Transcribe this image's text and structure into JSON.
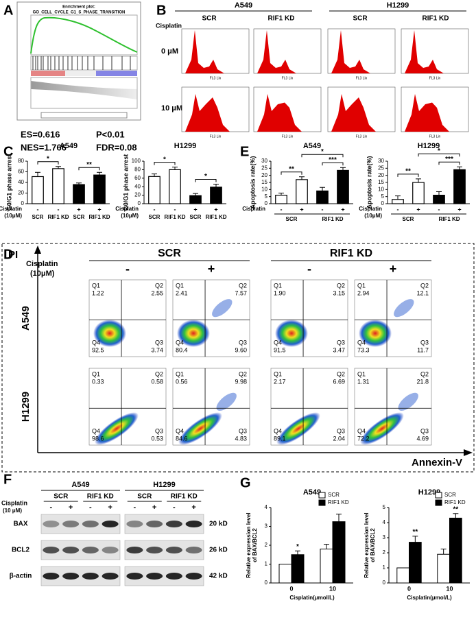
{
  "panels": {
    "labels": [
      "A",
      "B",
      "C",
      "D",
      "E",
      "F",
      "G"
    ]
  },
  "gsea": {
    "title": "Enrichment plot:",
    "subtitle": "GO_CELL_CYCLE_G1_S_PHASE_TRANSITION",
    "stats": [
      "ES=0.616",
      "P<0.01",
      "NES=1.766",
      "FDR=0.08"
    ]
  },
  "cell_cycle": {
    "cell_lines": [
      "A549",
      "H1299"
    ],
    "groups": [
      "SCR",
      "RIF1 KD",
      "SCR",
      "RIF1 KD"
    ],
    "treatment": "Cisplatin",
    "doses": [
      "0 μM",
      "10 μM"
    ],
    "x_label": "FL3 Lin"
  },
  "chart_data": [
    {
      "type": "bar",
      "title": "A549",
      "y_label": "G0/G1 phase arrest",
      "treatment_label": [
        "Cisplatin",
        "(10μM)"
      ],
      "treatment": [
        "-",
        "-",
        "+",
        "+"
      ],
      "categories": [
        "SCR",
        "RIF1 KD",
        "SCR",
        "RIF1 KD"
      ],
      "values": [
        51,
        66,
        36,
        54
      ],
      "errors": [
        8,
        4,
        3,
        5
      ],
      "colors": [
        "#ffffff",
        "#ffffff",
        "#000000",
        "#000000"
      ],
      "ylim": [
        0,
        80
      ],
      "yticks": [
        0,
        20,
        40,
        60,
        80
      ],
      "significance": [
        "*",
        "**"
      ]
    },
    {
      "type": "bar",
      "title": "H1299",
      "y_label": "G0/G1 phase arrest",
      "treatment_label": [
        "Cisplatin",
        "(10μM)"
      ],
      "treatment": [
        "-",
        "-",
        "+",
        "+"
      ],
      "categories": [
        "SCR",
        "RIF1 KD",
        "SCR",
        "RIF1 KD"
      ],
      "values": [
        64,
        80,
        19,
        39
      ],
      "errors": [
        6,
        6,
        5,
        7
      ],
      "colors": [
        "#ffffff",
        "#ffffff",
        "#000000",
        "#000000"
      ],
      "ylim": [
        0,
        100
      ],
      "yticks": [
        0,
        20,
        40,
        60,
        80,
        100
      ],
      "significance": [
        "*",
        "*"
      ]
    },
    {
      "type": "bar",
      "title": "A549",
      "y_label": "Apoptosis rate(%)",
      "treatment_label": [
        "Cisplatin"
      ],
      "categories": [
        "-",
        "+",
        "-",
        "+"
      ],
      "groups": [
        "SCR",
        "RIF1 KD"
      ],
      "values": [
        6,
        17,
        9,
        23.5
      ],
      "errors": [
        1.5,
        2,
        2.5,
        2
      ],
      "colors": [
        "#ffffff",
        "#ffffff",
        "#000000",
        "#000000"
      ],
      "ylim": [
        0,
        30
      ],
      "yticks": [
        0,
        5,
        10,
        15,
        20,
        25,
        30
      ],
      "significance": [
        "**",
        "***",
        "*"
      ]
    },
    {
      "type": "bar",
      "title": "H1299",
      "y_label": "Apoptosis rate(%)",
      "treatment_label": [
        "Cisplatin",
        "(10μM)"
      ],
      "categories": [
        "-",
        "+",
        "-",
        "+"
      ],
      "groups": [
        "SCR",
        "RIF1 KD"
      ],
      "values": [
        3,
        15,
        6,
        24
      ],
      "errors": [
        2.5,
        2.5,
        2.5,
        2
      ],
      "colors": [
        "#ffffff",
        "#ffffff",
        "#000000",
        "#000000"
      ],
      "ylim": [
        0,
        30
      ],
      "yticks": [
        0,
        5,
        10,
        15,
        20,
        25,
        30
      ],
      "significance": [
        "**",
        "***",
        "*"
      ]
    },
    {
      "type": "grouped_bar",
      "title": "A549",
      "y_label": [
        "Relative expression level",
        "of BAX/BCL2"
      ],
      "x_label": "Cisplatin(μmol/L)",
      "categories": [
        "0",
        "10"
      ],
      "series": [
        {
          "name": "SCR",
          "color": "#ffffff",
          "values": [
            1,
            1.8
          ],
          "errors": [
            0,
            0.25
          ]
        },
        {
          "name": "RIF1 KD",
          "color": "#000000",
          "values": [
            1.5,
            3.25
          ],
          "errors": [
            0.2,
            0.4
          ]
        }
      ],
      "ylim": [
        0,
        4
      ],
      "yticks": [
        0,
        1,
        2,
        3,
        4
      ],
      "significance": [
        "*"
      ]
    },
    {
      "type": "grouped_bar",
      "title": "H1299",
      "y_label": [
        "Relative expression level",
        "of BAX/BCL2"
      ],
      "x_label": "Cisplatin(μmol/L)",
      "categories": [
        "0",
        "10"
      ],
      "series": [
        {
          "name": "SCR",
          "color": "#ffffff",
          "values": [
            1,
            1.9
          ],
          "errors": [
            0,
            0.35
          ]
        },
        {
          "name": "RIF1 KD",
          "color": "#000000",
          "values": [
            2.7,
            4.3
          ],
          "errors": [
            0.4,
            0.3
          ]
        }
      ],
      "ylim": [
        0,
        5
      ],
      "yticks": [
        0,
        1,
        2,
        3,
        4,
        5
      ],
      "significance": [
        "**",
        "**"
      ]
    }
  ],
  "flow": {
    "y_label": "PI",
    "x_label": "Annexin-V",
    "groups": [
      "SCR",
      "RIF1 KD"
    ],
    "treatment": [
      "Cisplatin",
      "(10μM)"
    ],
    "signs": [
      "-",
      "+",
      "-",
      "+"
    ],
    "cell_lines": [
      "A549",
      "H1299"
    ],
    "quadrant_names": [
      "Q1",
      "Q2",
      "Q3",
      "Q4"
    ],
    "plots": [
      [
        [
          "1.22",
          "2.55",
          "3.74",
          "92.5"
        ],
        [
          "2.41",
          "7.57",
          "9.60",
          "80.4"
        ],
        [
          "1.90",
          "3.15",
          "3.47",
          "91.5"
        ],
        [
          "2.94",
          "12.1",
          "11.7",
          "73.3"
        ]
      ],
      [
        [
          "0.33",
          "0.58",
          "0.53",
          "98.6"
        ],
        [
          "0.56",
          "9.98",
          "4.83",
          "84.6"
        ],
        [
          "2.17",
          "6.69",
          "2.04",
          "89.1"
        ],
        [
          "1.31",
          "21.8",
          "4.69",
          "72.2"
        ]
      ]
    ]
  },
  "western": {
    "cell_lines": [
      "A549",
      "H1299"
    ],
    "groups": [
      "SCR",
      "RIF1 KD"
    ],
    "treatment": [
      "Cisplatin",
      "(10 μM)"
    ],
    "signs": [
      "-",
      "+",
      "-",
      "+"
    ],
    "proteins": [
      "BAX",
      "BCL2",
      "β-actin"
    ],
    "sizes": [
      "20 kD",
      "26 kD",
      "42 kD"
    ]
  }
}
